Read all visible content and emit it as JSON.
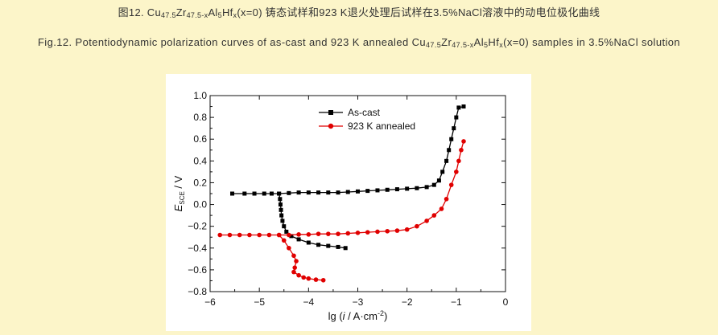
{
  "caption": {
    "zh_prefix": "图12. Cu",
    "zh_sub1": "47.5",
    "zh_mid1": "Zr",
    "zh_sub2": "47.5-x",
    "zh_mid2": "Al",
    "zh_sub3": "5",
    "zh_mid3": "Hf",
    "zh_sub4": "x",
    "zh_suffix": "(x=0) 铸态试样和923 K退火处理后试样在3.5%NaCl溶液中的动电位极化曲线",
    "en_prefix": "Fig.12. Potentiodynamic polarization curves of as-cast and 923 K annealed Cu",
    "en_sub1": "47.5",
    "en_mid1": "Zr",
    "en_sub2": "47.5-x",
    "en_mid2": "Al",
    "en_sub3": "5",
    "en_mid3": "Hf",
    "en_sub4": "x",
    "en_suffix": "(x=0) samples in 3.5%NaCl solution"
  },
  "chart_data": {
    "type": "line",
    "xlabel_prefix": "lg (",
    "xlabel_i": "i",
    "xlabel_mid": " / A·cm",
    "xlabel_sup": "-2",
    "xlabel_suffix": ")",
    "ylabel_main": "E",
    "ylabel_sub": "SCE",
    "ylabel_suffix": " / V",
    "xlim": [
      -6,
      0
    ],
    "ylim": [
      -0.8,
      1.0
    ],
    "xticks": [
      -6,
      -5,
      -4,
      -3,
      -2,
      -1,
      0
    ],
    "xtick_labels": [
      "−6",
      "−5",
      "−4",
      "−3",
      "−2",
      "−1",
      "0"
    ],
    "yticks": [
      -0.8,
      -0.6,
      -0.4,
      -0.2,
      0.0,
      0.2,
      0.4,
      0.6,
      0.8,
      1.0
    ],
    "ytick_labels": [
      "−0.8",
      "−0.6",
      "−0.4",
      "−0.2",
      "0.0",
      "0.2",
      "0.4",
      "0.6",
      "0.8",
      "1.0"
    ],
    "legend_position": "top-center",
    "series": [
      {
        "name": "As-cast",
        "color": "#000000",
        "marker": "square",
        "points": [
          [
            -5.55,
            0.1
          ],
          [
            -5.3,
            0.1
          ],
          [
            -5.1,
            0.1
          ],
          [
            -4.9,
            0.1
          ],
          [
            -4.75,
            0.1
          ],
          [
            -4.6,
            0.1
          ],
          [
            -4.4,
            0.105
          ],
          [
            -4.2,
            0.11
          ],
          [
            -4.0,
            0.11
          ],
          [
            -3.8,
            0.11
          ],
          [
            -3.6,
            0.11
          ],
          [
            -3.4,
            0.11
          ],
          [
            -3.2,
            0.115
          ],
          [
            -3.0,
            0.12
          ],
          [
            -2.8,
            0.125
          ],
          [
            -2.6,
            0.13
          ],
          [
            -2.4,
            0.135
          ],
          [
            -2.2,
            0.14
          ],
          [
            -2.0,
            0.145
          ],
          [
            -1.8,
            0.15
          ],
          [
            -1.6,
            0.16
          ],
          [
            -1.45,
            0.18
          ],
          [
            -1.35,
            0.22
          ],
          [
            -1.28,
            0.3
          ],
          [
            -1.2,
            0.4
          ],
          [
            -1.15,
            0.5
          ],
          [
            -1.1,
            0.6
          ],
          [
            -1.05,
            0.7
          ],
          [
            -1.0,
            0.8
          ],
          [
            -0.95,
            0.89
          ],
          [
            -0.85,
            0.9
          ]
        ],
        "cathodic_points": [
          [
            -4.6,
            0.1
          ],
          [
            -4.58,
            0.05
          ],
          [
            -4.57,
            0.0
          ],
          [
            -4.56,
            -0.05
          ],
          [
            -4.55,
            -0.1
          ],
          [
            -4.53,
            -0.15
          ],
          [
            -4.5,
            -0.2
          ],
          [
            -4.45,
            -0.25
          ],
          [
            -4.35,
            -0.29
          ],
          [
            -4.2,
            -0.32
          ],
          [
            -4.0,
            -0.35
          ],
          [
            -3.8,
            -0.37
          ],
          [
            -3.6,
            -0.38
          ],
          [
            -3.4,
            -0.39
          ],
          [
            -3.25,
            -0.4
          ]
        ]
      },
      {
        "name": "923 K annealed",
        "color": "#e00000",
        "marker": "circle",
        "points": [
          [
            -5.8,
            -0.28
          ],
          [
            -5.6,
            -0.28
          ],
          [
            -5.4,
            -0.28
          ],
          [
            -5.2,
            -0.28
          ],
          [
            -5.0,
            -0.28
          ],
          [
            -4.8,
            -0.28
          ],
          [
            -4.6,
            -0.28
          ],
          [
            -4.4,
            -0.28
          ],
          [
            -4.2,
            -0.275
          ],
          [
            -4.0,
            -0.275
          ],
          [
            -3.8,
            -0.27
          ],
          [
            -3.6,
            -0.27
          ],
          [
            -3.4,
            -0.27
          ],
          [
            -3.2,
            -0.265
          ],
          [
            -3.0,
            -0.26
          ],
          [
            -2.8,
            -0.255
          ],
          [
            -2.6,
            -0.25
          ],
          [
            -2.4,
            -0.245
          ],
          [
            -2.2,
            -0.24
          ],
          [
            -2.0,
            -0.23
          ],
          [
            -1.8,
            -0.2
          ],
          [
            -1.6,
            -0.15
          ],
          [
            -1.45,
            -0.1
          ],
          [
            -1.3,
            -0.04
          ],
          [
            -1.2,
            0.05
          ],
          [
            -1.1,
            0.18
          ],
          [
            -1.0,
            0.3
          ],
          [
            -0.95,
            0.4
          ],
          [
            -0.9,
            0.5
          ],
          [
            -0.85,
            0.58
          ]
        ],
        "cathodic_points": [
          [
            -4.6,
            -0.28
          ],
          [
            -4.5,
            -0.33
          ],
          [
            -4.4,
            -0.4
          ],
          [
            -4.3,
            -0.47
          ],
          [
            -4.25,
            -0.52
          ],
          [
            -4.28,
            -0.58
          ],
          [
            -4.3,
            -0.62
          ],
          [
            -4.2,
            -0.65
          ],
          [
            -4.1,
            -0.67
          ],
          [
            -4.0,
            -0.68
          ],
          [
            -3.85,
            -0.69
          ],
          [
            -3.7,
            -0.695
          ]
        ]
      }
    ]
  }
}
